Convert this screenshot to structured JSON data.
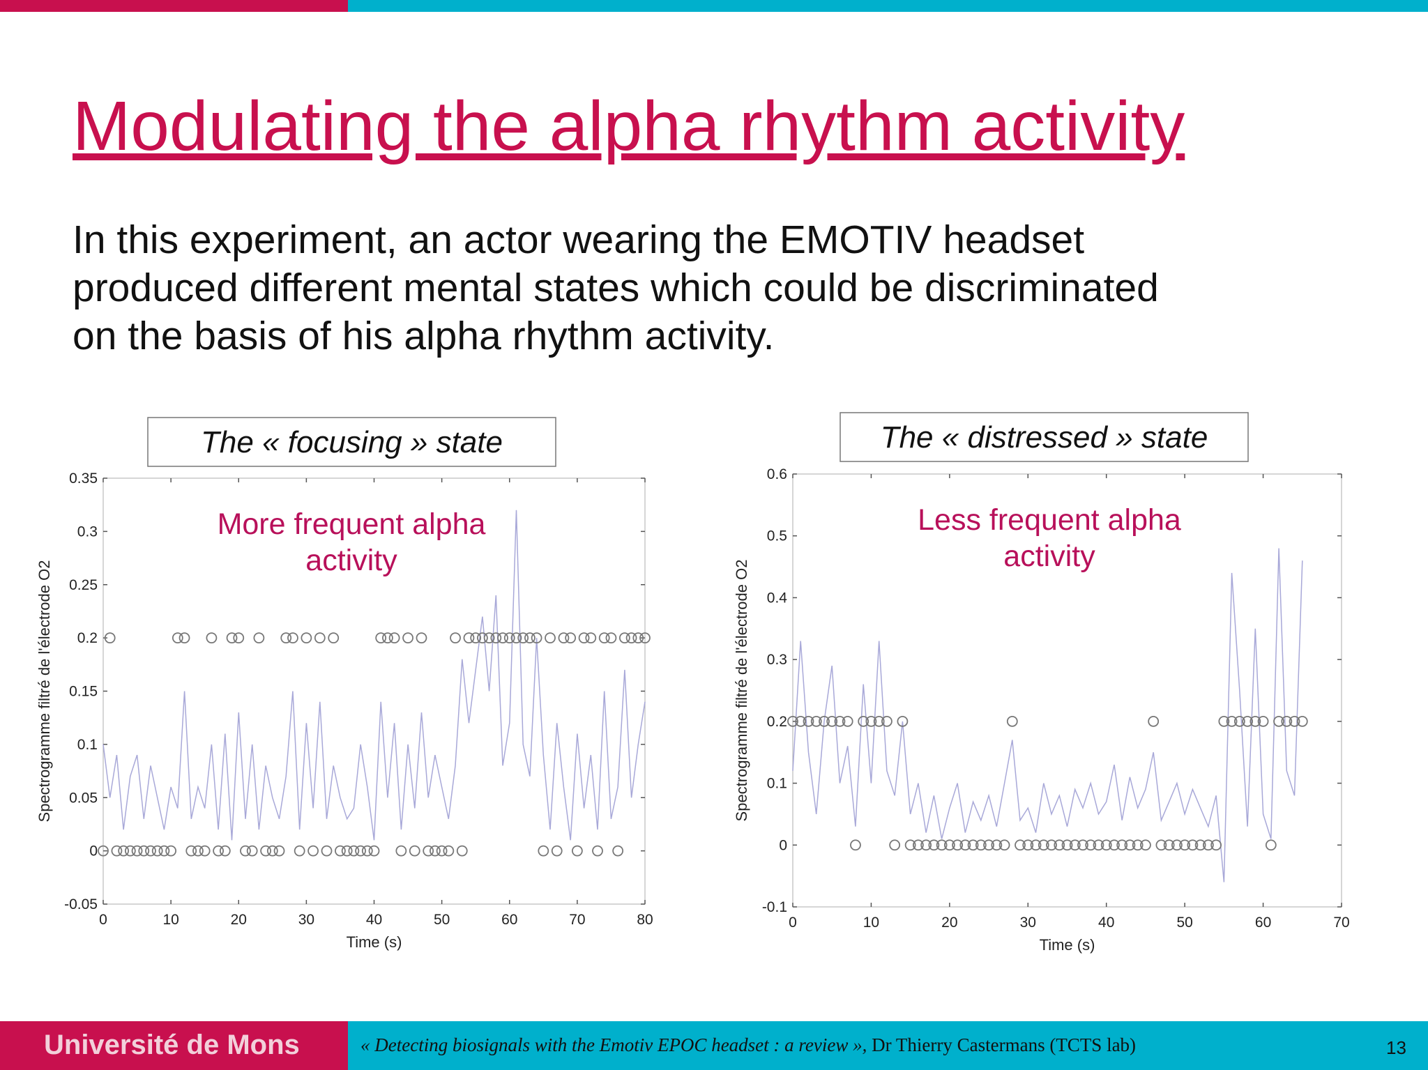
{
  "slide": {
    "title": "Modulating the alpha rhythm activity",
    "body": [
      "In this experiment, an actor wearing the EMOTIV headset",
      "produced different mental states which could be discriminated",
      "on the basis of his alpha rhythm activity."
    ]
  },
  "footer": {
    "institution": "Université de Mons",
    "citation": "« Detecting biosignals with the Emotiv EPOC headset : a review »,",
    "author": "Dr Thierry Castermans (TCTS lab)",
    "page": "13"
  },
  "chart_data": [
    {
      "type": "line",
      "title": "The « focusing » state",
      "annotation": [
        "More frequent alpha",
        "activity"
      ],
      "x_label": "Time (s)",
      "y_label": "Spectrogramme filtré de l'électrode O2",
      "xlim": [
        0,
        80
      ],
      "ylim": [
        -0.05,
        0.35
      ],
      "xticks": [
        0,
        10,
        20,
        30,
        40,
        50,
        60,
        70,
        80
      ],
      "yticks": [
        -0.05,
        0,
        0.05,
        0.1,
        0.15,
        0.2,
        0.25,
        0.3,
        0.35
      ],
      "x": [
        0,
        1,
        2,
        3,
        4,
        5,
        6,
        7,
        8,
        9,
        10,
        11,
        12,
        13,
        14,
        15,
        16,
        17,
        18,
        19,
        20,
        21,
        22,
        23,
        24,
        25,
        26,
        27,
        28,
        29,
        30,
        31,
        32,
        33,
        34,
        35,
        36,
        37,
        38,
        39,
        40,
        41,
        42,
        43,
        44,
        45,
        46,
        47,
        48,
        49,
        50,
        51,
        52,
        53,
        54,
        55,
        56,
        57,
        58,
        59,
        60,
        61,
        62,
        63,
        64,
        65,
        66,
        67,
        68,
        69,
        70,
        71,
        72,
        73,
        74,
        75,
        76,
        77,
        78,
        79,
        80
      ],
      "series": [
        {
          "color": "#a8a8d8",
          "values": [
            0.1,
            0.05,
            0.09,
            0.02,
            0.07,
            0.09,
            0.03,
            0.08,
            0.05,
            0.02,
            0.06,
            0.04,
            0.15,
            0.03,
            0.06,
            0.04,
            0.1,
            0.02,
            0.11,
            0.01,
            0.13,
            0.03,
            0.1,
            0.02,
            0.08,
            0.05,
            0.03,
            0.07,
            0.15,
            0.02,
            0.12,
            0.04,
            0.14,
            0.03,
            0.08,
            0.05,
            0.03,
            0.04,
            0.1,
            0.06,
            0.01,
            0.14,
            0.05,
            0.12,
            0.02,
            0.1,
            0.04,
            0.13,
            0.05,
            0.09,
            0.06,
            0.03,
            0.08,
            0.18,
            0.12,
            0.17,
            0.22,
            0.15,
            0.24,
            0.08,
            0.12,
            0.32,
            0.1,
            0.07,
            0.2,
            0.09,
            0.02,
            0.12,
            0.06,
            0.01,
            0.11,
            0.04,
            0.09,
            0.02,
            0.15,
            0.03,
            0.06,
            0.17,
            0.05,
            0.1,
            0.14
          ]
        },
        {
          "color": "#777777",
          "marker": "circle",
          "values": [
            0,
            0.2,
            0,
            0,
            0,
            0,
            0,
            0,
            0,
            0,
            0,
            0.2,
            0.2,
            0,
            0,
            0,
            0.2,
            0,
            0,
            0.2,
            0.2,
            0,
            0,
            0.2,
            0,
            0,
            0,
            0.2,
            0.2,
            0,
            0.2,
            0,
            0.2,
            0,
            0.2,
            0,
            0,
            0,
            0,
            0,
            0,
            0.2,
            0.2,
            0.2,
            0,
            0.2,
            0,
            0.2,
            0,
            0,
            0,
            0,
            0.2,
            0,
            0.2,
            0.2,
            0.2,
            0.2,
            0.2,
            0.2,
            0.2,
            0.2,
            0.2,
            0.2,
            0.2,
            0,
            0.2,
            0,
            0.2,
            0.2,
            0,
            0.2,
            0.2,
            0,
            0.2,
            0.2,
            0,
            0.2,
            0.2,
            0.2,
            0.2
          ]
        }
      ]
    },
    {
      "type": "line",
      "title": "The « distressed » state",
      "annotation": [
        "Less frequent alpha",
        "activity"
      ],
      "x_label": "Time (s)",
      "y_label": "Spectrogramme filtré de l'électrode O2",
      "xlim": [
        0,
        70
      ],
      "ylim": [
        -0.1,
        0.6
      ],
      "xticks": [
        0,
        10,
        20,
        30,
        40,
        50,
        60,
        70
      ],
      "yticks": [
        -0.1,
        0,
        0.1,
        0.2,
        0.3,
        0.4,
        0.5,
        0.6
      ],
      "x": [
        0,
        1,
        2,
        3,
        4,
        5,
        6,
        7,
        8,
        9,
        10,
        11,
        12,
        13,
        14,
        15,
        16,
        17,
        18,
        19,
        20,
        21,
        22,
        23,
        24,
        25,
        26,
        27,
        28,
        29,
        30,
        31,
        32,
        33,
        34,
        35,
        36,
        37,
        38,
        39,
        40,
        41,
        42,
        43,
        44,
        45,
        46,
        47,
        48,
        49,
        50,
        51,
        52,
        53,
        54,
        55,
        56,
        57,
        58,
        59,
        60,
        61,
        62,
        63,
        64,
        65
      ],
      "series": [
        {
          "color": "#a8a8d8",
          "values": [
            0.12,
            0.33,
            0.15,
            0.05,
            0.2,
            0.29,
            0.1,
            0.16,
            0.03,
            0.26,
            0.1,
            0.33,
            0.12,
            0.08,
            0.2,
            0.05,
            0.1,
            0.02,
            0.08,
            0.01,
            0.06,
            0.1,
            0.02,
            0.07,
            0.04,
            0.08,
            0.03,
            0.1,
            0.17,
            0.04,
            0.06,
            0.02,
            0.1,
            0.05,
            0.08,
            0.03,
            0.09,
            0.06,
            0.1,
            0.05,
            0.07,
            0.13,
            0.04,
            0.11,
            0.06,
            0.09,
            0.15,
            0.04,
            0.07,
            0.1,
            0.05,
            0.09,
            0.06,
            0.03,
            0.08,
            -0.06,
            0.44,
            0.25,
            0.03,
            0.35,
            0.05,
            0.01,
            0.48,
            0.12,
            0.08,
            0.46
          ]
        },
        {
          "color": "#777777",
          "marker": "circle",
          "values": [
            0.2,
            0.2,
            0.2,
            0.2,
            0.2,
            0.2,
            0.2,
            0.2,
            0,
            0.2,
            0.2,
            0.2,
            0.2,
            0,
            0.2,
            0,
            0,
            0,
            0,
            0,
            0,
            0,
            0,
            0,
            0,
            0,
            0,
            0,
            0.2,
            0,
            0,
            0,
            0,
            0,
            0,
            0,
            0,
            0,
            0,
            0,
            0,
            0,
            0,
            0,
            0,
            0,
            0.2,
            0,
            0,
            0,
            0,
            0,
            0,
            0,
            0,
            0.2,
            0.2,
            0.2,
            0.2,
            0.2,
            0.2,
            0,
            0.2,
            0.2,
            0.2,
            0.2
          ]
        }
      ]
    }
  ]
}
